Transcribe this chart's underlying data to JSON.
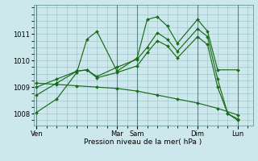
{
  "background_color": "#cce8ec",
  "grid_color": "#a0c8cc",
  "line_color": "#1a6b1a",
  "ylim": [
    1007.55,
    1012.1
  ],
  "yticks": [
    1008,
    1009,
    1010,
    1011
  ],
  "day_tick_labels": [
    "Ven",
    "Mar",
    "Sam",
    "Dim",
    "Lun"
  ],
  "day_tick_positions": [
    0,
    8,
    10,
    16,
    20
  ],
  "vline_positions": [
    0,
    8,
    10,
    16,
    20
  ],
  "xlim": [
    -0.3,
    21.5
  ],
  "xlabel": "Pression niveau de la mer( hPa )",
  "series": [
    {
      "x": [
        0,
        2,
        4,
        5,
        6,
        8,
        10,
        11,
        12,
        13,
        14,
        16,
        17,
        18,
        20
      ],
      "y": [
        1008.05,
        1008.55,
        1009.55,
        1010.8,
        1011.1,
        1009.6,
        1010.1,
        1011.55,
        1011.65,
        1011.3,
        1010.65,
        1011.55,
        1011.1,
        1009.65,
        1009.65
      ]
    },
    {
      "x": [
        0,
        2,
        4,
        5,
        6,
        8,
        10,
        11,
        12,
        13,
        14,
        16,
        17,
        18,
        19,
        20
      ],
      "y": [
        1008.7,
        1009.15,
        1009.6,
        1009.65,
        1009.4,
        1009.75,
        1010.05,
        1010.5,
        1011.05,
        1010.8,
        1010.35,
        1011.2,
        1010.9,
        1009.3,
        1008.0,
        1007.8
      ]
    },
    {
      "x": [
        0,
        2,
        4,
        5,
        6,
        8,
        10,
        11,
        12,
        13,
        14,
        16,
        17,
        18,
        19,
        20
      ],
      "y": [
        1009.0,
        1009.3,
        1009.6,
        1009.65,
        1009.35,
        1009.55,
        1009.8,
        1010.3,
        1010.75,
        1010.55,
        1010.1,
        1010.9,
        1010.6,
        1009.0,
        1008.0,
        1007.75
      ]
    },
    {
      "x": [
        0,
        2,
        4,
        6,
        8,
        10,
        12,
        14,
        16,
        18,
        20
      ],
      "y": [
        1009.15,
        1009.1,
        1009.05,
        1009.0,
        1008.95,
        1008.85,
        1008.7,
        1008.55,
        1008.4,
        1008.2,
        1007.95
      ]
    }
  ]
}
